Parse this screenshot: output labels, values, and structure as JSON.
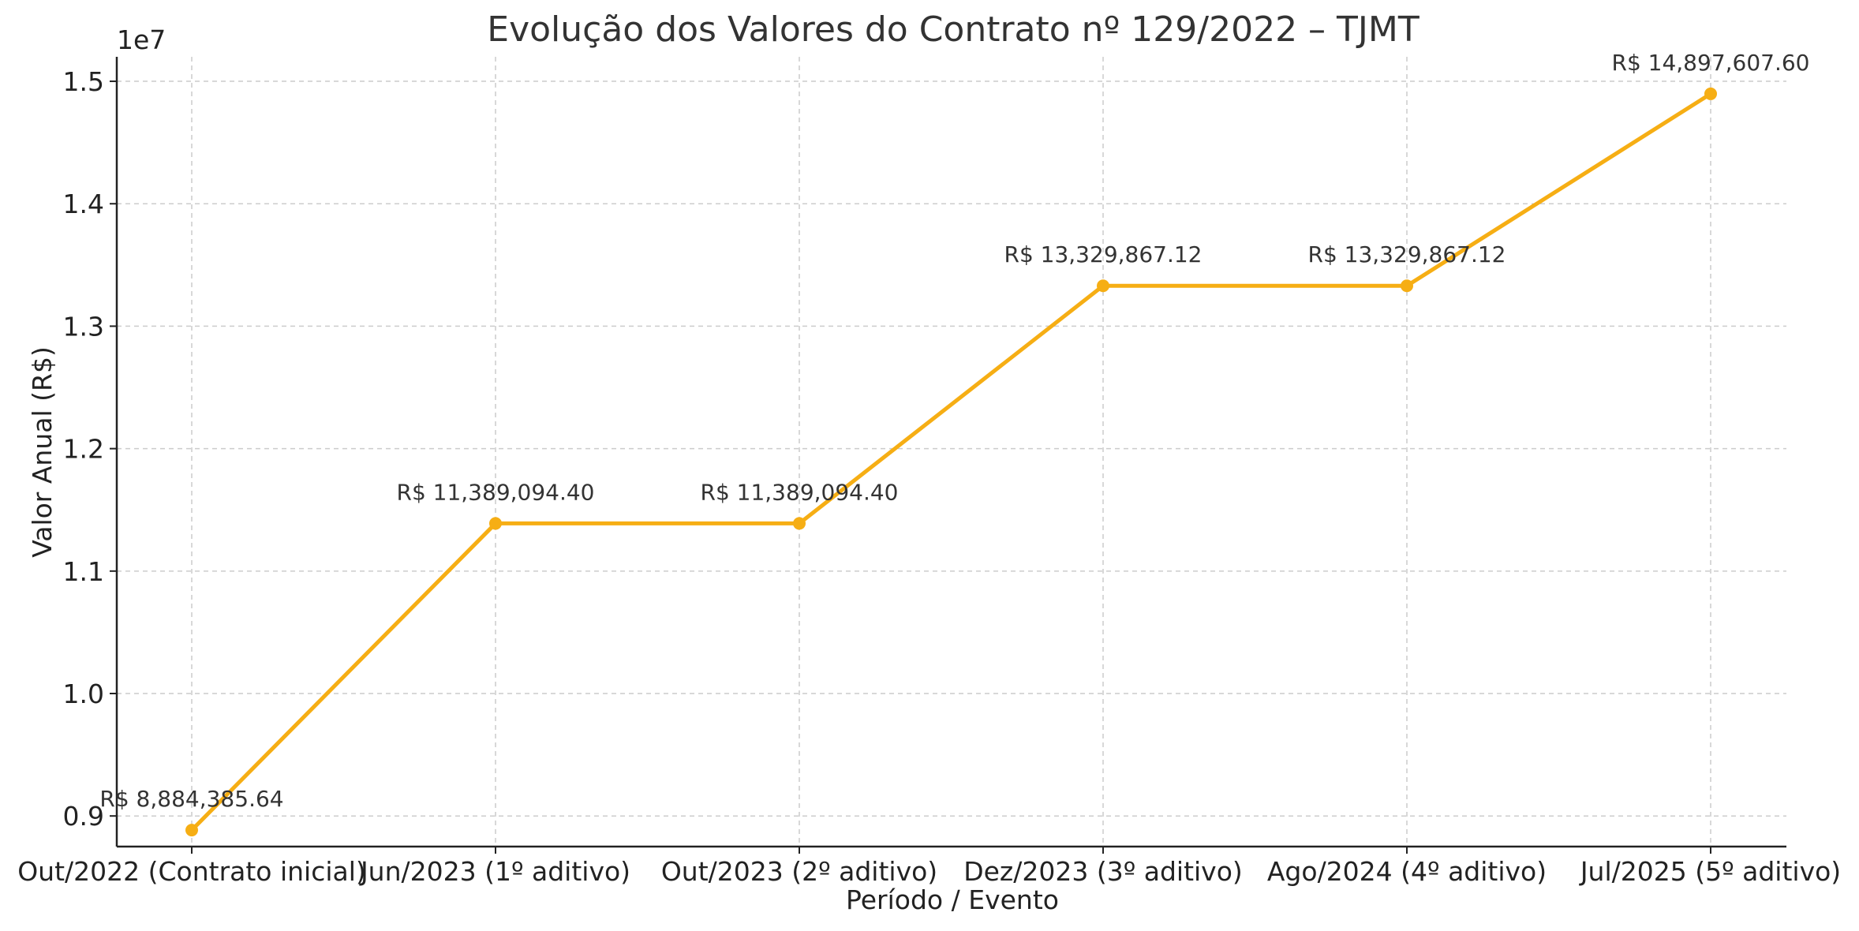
{
  "chart_data": {
    "type": "line",
    "title": "Evolução dos Valores do Contrato nº 129/2022 – TJMT",
    "xlabel": "Período / Evento",
    "ylabel": "Valor Anual (R$)",
    "y_offset_label": "1e7",
    "categories": [
      "Out/2022 (Contrato inicial)",
      "Jun/2023 (1º aditivo)",
      "Out/2023 (2º aditivo)",
      "Dez/2023 (3º aditivo)",
      "Ago/2024 (4º aditivo)",
      "Jul/2025 (5º aditivo)"
    ],
    "series": [
      {
        "values": [
          8884385.64,
          11389094.4,
          11389094.4,
          13329867.12,
          13329867.12,
          14897607.6
        ],
        "color": "#F6AE14"
      }
    ],
    "data_labels": [
      "R$ 8,884,385.64",
      "R$ 11,389,094.40",
      "R$ 11,389,094.40",
      "R$ 13,329,867.12",
      "R$ 13,329,867.12",
      "R$ 14,897,607.60"
    ],
    "yticks": [
      9000000,
      10000000,
      11000000,
      12000000,
      13000000,
      14000000,
      15000000
    ],
    "ytick_labels": [
      "0.9",
      "1.0",
      "1.1",
      "1.2",
      "1.3",
      "1.4",
      "1.5"
    ],
    "ylim": [
      8750000,
      15200000
    ],
    "grid": true,
    "marker": "circle"
  }
}
